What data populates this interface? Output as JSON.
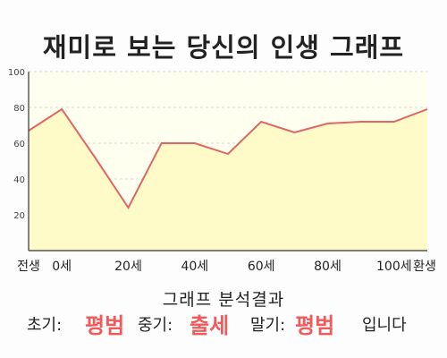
{
  "title": "재미로 보는 당신의 인생 그래프",
  "chart_data": {
    "type": "area",
    "x": [
      -10,
      0,
      10,
      20,
      30,
      40,
      50,
      60,
      70,
      80,
      90,
      100,
      110
    ],
    "y": [
      67,
      79,
      52,
      24,
      60,
      60,
      54,
      72,
      66,
      71,
      72,
      72,
      79
    ],
    "x_tick_labels": [
      "전생",
      "0세",
      "20세",
      "40세",
      "60세",
      "80세",
      "100세",
      "환생"
    ],
    "x_tick_values": [
      -10,
      0,
      20,
      40,
      60,
      80,
      100,
      110
    ],
    "y_ticks": [
      100,
      80,
      60,
      40,
      20
    ],
    "ylim": [
      0,
      100
    ],
    "grid": "horizontal dashed",
    "line_color": "#e06666",
    "fill_color": "#fffbc8"
  },
  "analysis": {
    "heading": "그래프 분석결과",
    "early_label": "초기:",
    "early_value": "평범",
    "mid_label": "중기:",
    "mid_value": "출세",
    "late_label": "말기:",
    "late_value": "평범",
    "suffix": "입니다"
  },
  "colors": {
    "highlight": "#f05a5a"
  }
}
